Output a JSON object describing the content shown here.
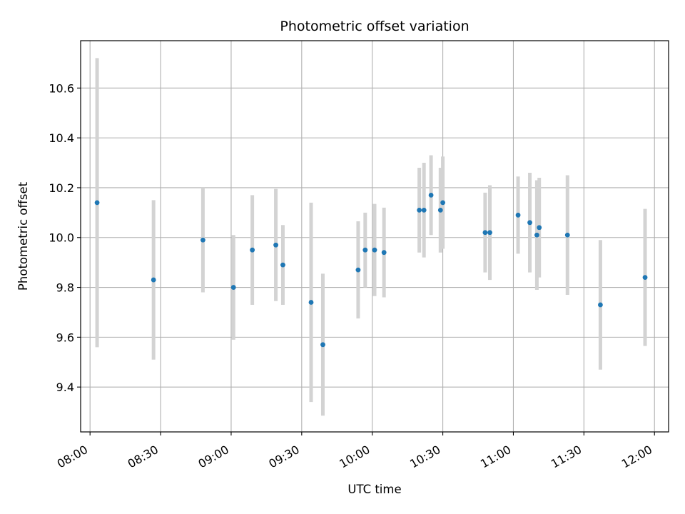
{
  "chart_data": {
    "type": "scatter",
    "title": "Photometric offset variation",
    "xlabel": "UTC time",
    "ylabel": "Photometric offset",
    "grid": true,
    "xlim": [
      "07:56",
      "12:06"
    ],
    "ylim": [
      9.22,
      10.79
    ],
    "x_ticks": [
      "08:00",
      "08:30",
      "09:00",
      "09:30",
      "10:00",
      "10:30",
      "11:00",
      "11:30",
      "12:00"
    ],
    "y_ticks": [
      9.4,
      9.6,
      9.8,
      10.0,
      10.2,
      10.4,
      10.6
    ],
    "colors": {
      "marker": "#1f77b4",
      "errorbar": "#d3d3d3",
      "grid": "#b0b0b0"
    },
    "points": [
      {
        "x": "08:03",
        "y": 10.14,
        "yerr": 0.58
      },
      {
        "x": "08:27",
        "y": 9.83,
        "yerr": 0.32
      },
      {
        "x": "08:48",
        "y": 9.99,
        "yerr": 0.21
      },
      {
        "x": "09:01",
        "y": 9.8,
        "yerr": 0.21
      },
      {
        "x": "09:09",
        "y": 9.95,
        "yerr": 0.22
      },
      {
        "x": "09:19",
        "y": 9.97,
        "yerr": 0.225
      },
      {
        "x": "09:22",
        "y": 9.89,
        "yerr": 0.16
      },
      {
        "x": "09:34",
        "y": 9.74,
        "yerr": 0.4
      },
      {
        "x": "09:39",
        "y": 9.57,
        "yerr": 0.285
      },
      {
        "x": "09:54",
        "y": 9.87,
        "yerr": 0.195
      },
      {
        "x": "09:57",
        "y": 9.95,
        "yerr": 0.15
      },
      {
        "x": "10:01",
        "y": 9.95,
        "yerr": 0.185
      },
      {
        "x": "10:05",
        "y": 9.94,
        "yerr": 0.18
      },
      {
        "x": "10:20",
        "y": 10.11,
        "yerr": 0.17
      },
      {
        "x": "10:22",
        "y": 10.11,
        "yerr": 0.19
      },
      {
        "x": "10:25",
        "y": 10.17,
        "yerr": 0.16
      },
      {
        "x": "10:29",
        "y": 10.11,
        "yerr": 0.17
      },
      {
        "x": "10:30",
        "y": 10.14,
        "yerr": 0.185
      },
      {
        "x": "10:48",
        "y": 10.02,
        "yerr": 0.16
      },
      {
        "x": "10:50",
        "y": 10.02,
        "yerr": 0.19
      },
      {
        "x": "11:02",
        "y": 10.09,
        "yerr": 0.155
      },
      {
        "x": "11:07",
        "y": 10.06,
        "yerr": 0.2
      },
      {
        "x": "11:10",
        "y": 10.01,
        "yerr": 0.22
      },
      {
        "x": "11:11",
        "y": 10.04,
        "yerr": 0.2
      },
      {
        "x": "11:23",
        "y": 10.01,
        "yerr": 0.24
      },
      {
        "x": "11:37",
        "y": 9.73,
        "yerr": 0.26
      },
      {
        "x": "11:56",
        "y": 9.84,
        "yerr": 0.275
      }
    ]
  }
}
